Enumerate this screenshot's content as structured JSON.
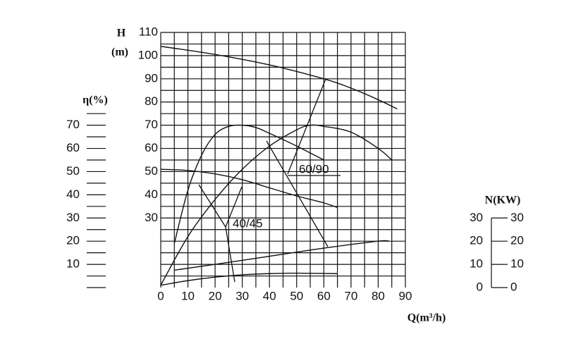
{
  "chart_data": {
    "type": "line",
    "y_title": "H",
    "y_unit": "(m)",
    "y3_title": "η(%)",
    "y2_title": "N(KW)",
    "x_title": "Q(m³/h)",
    "xlim": [
      0,
      90
    ],
    "xticks": [
      0,
      10,
      20,
      30,
      40,
      50,
      60,
      70,
      80,
      90
    ],
    "ylim": [
      0,
      110
    ],
    "yticks": [
      30,
      40,
      50,
      60,
      70,
      80,
      90,
      100,
      110
    ],
    "y3lim": [
      0,
      110
    ],
    "y3ticks": [
      10,
      20,
      30,
      40,
      50,
      60,
      70
    ],
    "y2lim": [
      0,
      110
    ],
    "y2ticks": [
      0,
      10,
      20,
      30
    ],
    "grid": true,
    "color": "#111111",
    "annotations": [
      "40/45",
      "60/90"
    ],
    "series": [
      {
        "x": [
          0,
          10,
          20,
          30,
          40,
          50,
          60,
          65
        ],
        "values": [
          51,
          50.5,
          49,
          46.5,
          43,
          39.5,
          36.5,
          34.5
        ],
        "axis": "y"
      },
      {
        "x": [
          5,
          10,
          15,
          20,
          25,
          30,
          35,
          40,
          50,
          60
        ],
        "values": [
          19,
          42,
          57,
          66,
          69.5,
          70,
          69,
          66.5,
          61,
          55
        ],
        "axis": "y3"
      },
      {
        "x": [
          0,
          10,
          20,
          30,
          40,
          50,
          65
        ],
        "values": [
          1,
          3,
          4.5,
          5.5,
          6,
          6.2,
          6
        ],
        "axis": "y2"
      },
      {
        "x": [
          0,
          20,
          40,
          60,
          70,
          80,
          87
        ],
        "values": [
          104,
          100.5,
          96,
          90,
          86,
          81,
          77
        ],
        "axis": "y"
      },
      {
        "x": [
          0,
          10,
          20,
          30,
          40,
          50,
          55,
          60,
          70,
          80,
          85
        ],
        "values": [
          1,
          22,
          38,
          51,
          61,
          68,
          70,
          69.5,
          67,
          60,
          55
        ],
        "axis": "y3"
      },
      {
        "x": [
          5,
          20,
          40,
          60,
          80,
          84
        ],
        "values": [
          7.5,
          10,
          13.5,
          17,
          20,
          20
        ],
        "axis": "y2"
      }
    ]
  }
}
